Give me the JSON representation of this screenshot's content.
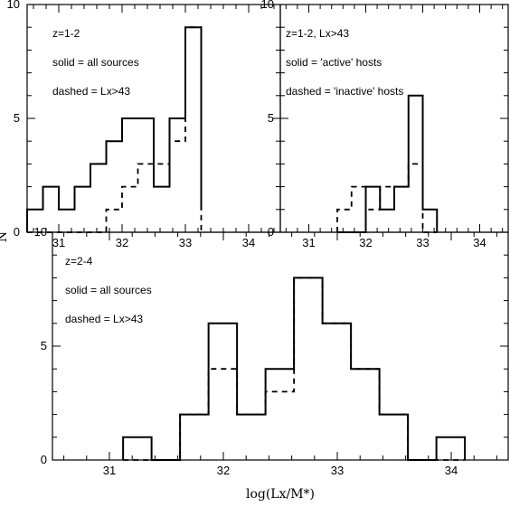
{
  "figure": {
    "xlabel": "log(Lx/M*)",
    "ylabel": "N"
  },
  "chart_data": [
    {
      "type": "histogram",
      "id": "top-left",
      "xlim": [
        30.5,
        34.5
      ],
      "ylim": [
        0,
        10
      ],
      "xticks": [
        "31",
        "32",
        "33",
        "34"
      ],
      "yticks": [
        "0",
        "5",
        "10"
      ],
      "bin_edges": [
        30.5,
        30.75,
        31.0,
        31.25,
        31.5,
        31.75,
        32.0,
        32.25,
        32.5,
        32.75,
        33.0,
        33.25
      ],
      "annotations": [
        "z=1-2",
        "solid = all sources",
        "dashed = Lx>43"
      ],
      "series": [
        {
          "name": "all sources",
          "style": "solid",
          "values": [
            1,
            2,
            1,
            2,
            3,
            4,
            5,
            5,
            2,
            5,
            9,
            1
          ]
        },
        {
          "name": "Lx>43",
          "style": "dashed",
          "values": [
            0,
            0,
            0,
            0,
            0,
            1,
            2,
            3,
            3,
            4,
            9,
            0
          ]
        }
      ]
    },
    {
      "type": "histogram",
      "id": "top-right",
      "xlim": [
        30.5,
        34.5
      ],
      "ylim": [
        0,
        10
      ],
      "xticks": [
        "31",
        "32",
        "33",
        "34"
      ],
      "yticks": [
        "0",
        "5",
        "10"
      ],
      "bin_edges": [
        31.5,
        31.75,
        32.0,
        32.25,
        32.5,
        32.75,
        33.0,
        33.25
      ],
      "annotations": [
        "z=1-2, Lx>43",
        "solid = 'active' hosts",
        "dashed = 'inactive' hosts"
      ],
      "series": [
        {
          "name": "'active' hosts",
          "style": "solid",
          "values": [
            0,
            0,
            2,
            1,
            2,
            6,
            1
          ]
        },
        {
          "name": "'inactive' hosts",
          "style": "dashed",
          "values": [
            1,
            2,
            1,
            2,
            2,
            3,
            0
          ]
        }
      ]
    },
    {
      "type": "histogram",
      "id": "bottom",
      "xlim": [
        30.5,
        34.5
      ],
      "ylim": [
        0,
        10
      ],
      "xticks": [
        "31",
        "32",
        "33",
        "34"
      ],
      "yticks": [
        "0",
        "5",
        "10"
      ],
      "bin_edges": [
        31.12,
        31.37,
        31.62,
        31.87,
        32.12,
        32.37,
        32.62,
        32.87,
        33.12,
        33.37,
        33.62,
        33.87,
        34.12
      ],
      "annotations": [
        "z=2-4",
        "solid = all sources",
        "dashed = Lx>43"
      ],
      "series": [
        {
          "name": "all sources",
          "style": "solid",
          "values": [
            1,
            0,
            2,
            6,
            2,
            4,
            8,
            6,
            4,
            2,
            0,
            1
          ]
        },
        {
          "name": "Lx>43",
          "style": "dashed",
          "values": [
            0,
            0,
            2,
            4,
            2,
            3,
            8,
            6,
            4,
            2,
            0,
            0
          ]
        }
      ]
    }
  ]
}
